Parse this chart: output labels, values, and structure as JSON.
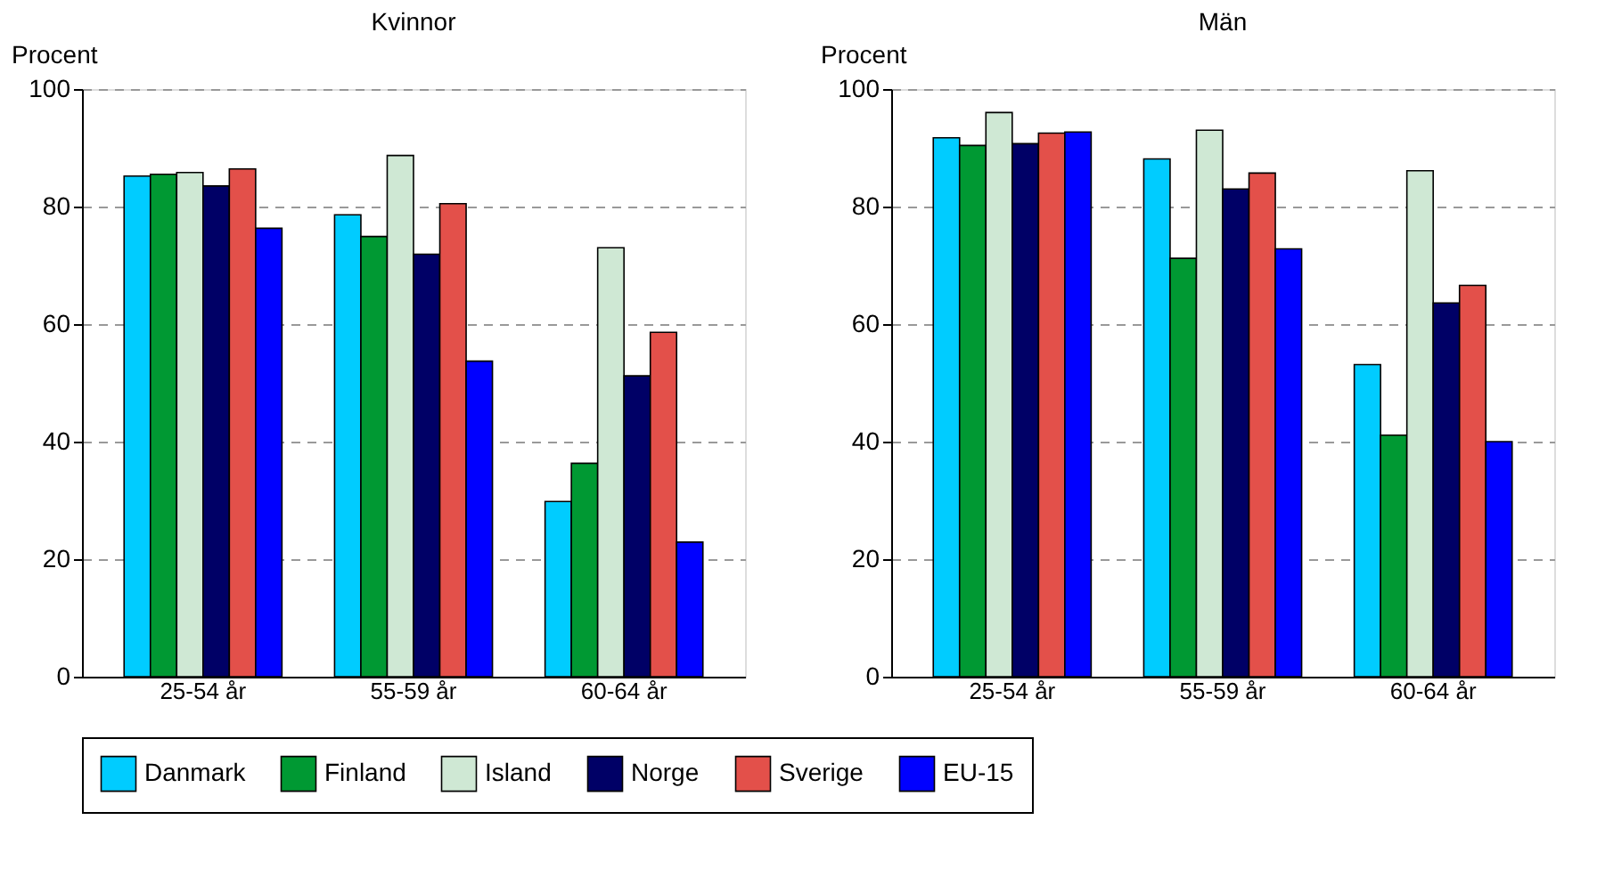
{
  "chart_data": [
    {
      "type": "bar",
      "title": "Kvinnor",
      "ylabel": "Procent",
      "categories": [
        "25-54 år",
        "55-59 år",
        "60-64 år"
      ],
      "ylim": [
        0,
        100
      ],
      "yticks": [
        0,
        20,
        40,
        60,
        80,
        100
      ],
      "grid": "y",
      "legend": "bottom",
      "series": [
        {
          "name": "Danmark",
          "color": "#00ccff",
          "values": [
            85.2,
            78.6,
            29.8
          ]
        },
        {
          "name": "Finland",
          "color": "#009933",
          "values": [
            85.5,
            74.9,
            36.3
          ]
        },
        {
          "name": "Island",
          "color": "#cfe8d4",
          "values": [
            85.8,
            88.7,
            73.0
          ]
        },
        {
          "name": "Norge",
          "color": "#000066",
          "values": [
            83.5,
            71.9,
            51.2
          ]
        },
        {
          "name": "Sverige",
          "color": "#e3504a",
          "values": [
            86.4,
            80.5,
            58.6
          ]
        },
        {
          "name": "EU-15",
          "color": "#0000ff",
          "values": [
            76.3,
            53.7,
            22.9
          ]
        }
      ]
    },
    {
      "type": "bar",
      "title": "Män",
      "ylabel": "Procent",
      "categories": [
        "25-54 år",
        "55-59 år",
        "60-64 år"
      ],
      "ylim": [
        0,
        100
      ],
      "yticks": [
        0,
        20,
        40,
        60,
        80,
        100
      ],
      "grid": "y",
      "legend": "bottom",
      "series": [
        {
          "name": "Danmark",
          "color": "#00ccff",
          "values": [
            91.7,
            88.1,
            53.1
          ]
        },
        {
          "name": "Finland",
          "color": "#009933",
          "values": [
            90.4,
            71.2,
            41.1
          ]
        },
        {
          "name": "Island",
          "color": "#cfe8d4",
          "values": [
            96.0,
            93.0,
            86.1
          ]
        },
        {
          "name": "Norge",
          "color": "#000066",
          "values": [
            90.7,
            83.0,
            63.6
          ]
        },
        {
          "name": "Sverige",
          "color": "#e3504a",
          "values": [
            92.5,
            85.7,
            66.6
          ]
        },
        {
          "name": "EU-15",
          "color": "#0000ff",
          "values": [
            92.7,
            72.8,
            40.0
          ]
        }
      ]
    }
  ]
}
